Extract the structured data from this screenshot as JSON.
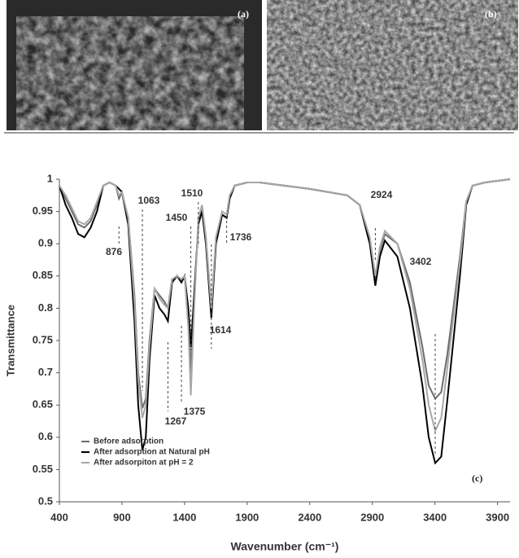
{
  "panels": [
    "(a)",
    "(b)"
  ],
  "chart_data": {
    "type": "line",
    "panel_label": "(c)",
    "x_label": "Wavenumber (cm⁻¹)",
    "y_label": "Transmittance",
    "xlim": [
      400,
      4000
    ],
    "ylim": [
      0.5,
      1
    ],
    "xticks": [
      400,
      900,
      1400,
      1900,
      2400,
      2900,
      3400,
      3900
    ],
    "yticks": [
      0.5,
      0.55,
      0.6,
      0.65,
      0.7,
      0.75,
      0.8,
      0.85,
      0.9,
      0.95,
      1
    ],
    "legend": "lower left",
    "peaks": [
      876,
      1063,
      1267,
      1375,
      1450,
      1510,
      1614,
      1736,
      2924,
      3402
    ],
    "x": [
      400,
      450,
      500,
      550,
      600,
      650,
      700,
      750,
      800,
      850,
      876,
      900,
      950,
      1000,
      1030,
      1063,
      1090,
      1120,
      1160,
      1200,
      1240,
      1267,
      1300,
      1340,
      1375,
      1400,
      1430,
      1450,
      1470,
      1510,
      1540,
      1570,
      1614,
      1650,
      1700,
      1736,
      1760,
      1800,
      1900,
      2000,
      2400,
      2700,
      2800,
      2880,
      2924,
      2960,
      3000,
      3100,
      3200,
      3300,
      3350,
      3402,
      3450,
      3500,
      3600,
      3650,
      3700,
      3800,
      4000
    ],
    "series": [
      {
        "name": "Before adsorption",
        "color": "#6b6b6b",
        "values": [
          0.99,
          0.97,
          0.95,
          0.93,
          0.925,
          0.935,
          0.96,
          0.99,
          0.995,
          0.99,
          0.97,
          0.98,
          0.94,
          0.82,
          0.7,
          0.645,
          0.66,
          0.75,
          0.83,
          0.82,
          0.81,
          0.8,
          0.845,
          0.85,
          0.845,
          0.85,
          0.79,
          0.7,
          0.79,
          0.93,
          0.955,
          0.91,
          0.8,
          0.9,
          0.945,
          0.94,
          0.97,
          0.99,
          0.995,
          0.995,
          0.985,
          0.975,
          0.96,
          0.905,
          0.845,
          0.89,
          0.915,
          0.9,
          0.84,
          0.74,
          0.68,
          0.66,
          0.67,
          0.73,
          0.88,
          0.965,
          0.99,
          0.995,
          1.0
        ]
      },
      {
        "name": "After adsorption at Natural pH",
        "color": "#000000",
        "values": [
          0.99,
          0.96,
          0.94,
          0.915,
          0.91,
          0.925,
          0.95,
          0.99,
          0.995,
          0.99,
          0.985,
          0.98,
          0.93,
          0.78,
          0.65,
          0.58,
          0.6,
          0.72,
          0.82,
          0.8,
          0.79,
          0.78,
          0.84,
          0.85,
          0.84,
          0.85,
          0.8,
          0.74,
          0.8,
          0.93,
          0.95,
          0.9,
          0.785,
          0.9,
          0.945,
          0.94,
          0.97,
          0.99,
          0.995,
          0.995,
          0.985,
          0.975,
          0.96,
          0.9,
          0.835,
          0.88,
          0.905,
          0.88,
          0.8,
          0.68,
          0.6,
          0.56,
          0.57,
          0.66,
          0.85,
          0.96,
          0.99,
          0.995,
          1.0
        ]
      },
      {
        "name": "After adsorpiton at pH = 2",
        "color": "#a8a8a8",
        "values": [
          0.99,
          0.975,
          0.955,
          0.935,
          0.93,
          0.94,
          0.965,
          0.99,
          0.995,
          0.99,
          0.975,
          0.98,
          0.94,
          0.81,
          0.69,
          0.63,
          0.65,
          0.74,
          0.83,
          0.815,
          0.805,
          0.8,
          0.845,
          0.85,
          0.845,
          0.85,
          0.77,
          0.665,
          0.77,
          0.94,
          0.96,
          0.91,
          0.8,
          0.91,
          0.95,
          0.945,
          0.975,
          0.99,
          0.995,
          0.995,
          0.985,
          0.975,
          0.96,
          0.91,
          0.85,
          0.895,
          0.92,
          0.9,
          0.83,
          0.72,
          0.65,
          0.61,
          0.63,
          0.71,
          0.87,
          0.965,
          0.99,
          0.995,
          1.0
        ]
      }
    ]
  }
}
